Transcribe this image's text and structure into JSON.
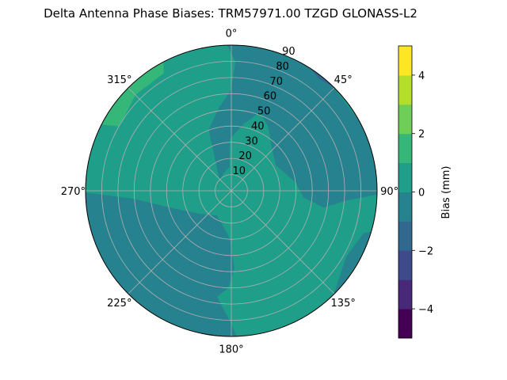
{
  "chart_data": {
    "type": "heatmap",
    "projection": "polar",
    "title": "Delta Antenna Phase Biases: TRM57971.00     TZGD GLONASS-L2",
    "azimuth_tick_labels": [
      "0°",
      "45°",
      "90°",
      "135°",
      "180°",
      "225°",
      "270°",
      "315°"
    ],
    "azimuth_ticks_deg": [
      0,
      45,
      90,
      135,
      180,
      225,
      270,
      315
    ],
    "radial_tick_labels": [
      "10",
      "20",
      "30",
      "40",
      "50",
      "60",
      "70",
      "80",
      "90"
    ],
    "radial_ticks": [
      10,
      20,
      30,
      40,
      50,
      60,
      70,
      80,
      90
    ],
    "radial_range": [
      0,
      90
    ],
    "direction": "clockwise",
    "zero_location": "north",
    "grid": true,
    "colorbar": {
      "label": "Bias (mm)",
      "range": [
        -5,
        5
      ],
      "levels": [
        -5,
        -4,
        -3,
        -2,
        -1,
        0,
        1,
        2,
        3,
        4,
        5
      ],
      "tick_labels": [
        "−4",
        "−2",
        "0",
        "2",
        "4"
      ],
      "ticks": [
        -4,
        -2,
        0,
        2,
        4
      ],
      "colors": [
        "#440154",
        "#482878",
        "#3e4a89",
        "#31688e",
        "#26828e",
        "#1f9e89",
        "#35b779",
        "#6ece58",
        "#b5de2b",
        "#fde725"
      ]
    },
    "regions": [
      {
        "name": "background",
        "bias_level": [
          0,
          1
        ],
        "color": "#1f9e89"
      },
      {
        "name": "north-east-negative-band",
        "bias_level": [
          -1,
          0
        ],
        "color": "#26828e"
      },
      {
        "name": "north-east-edge",
        "bias_level": [
          -2,
          -1
        ],
        "color": "#31688e"
      },
      {
        "name": "north-west-edge",
        "bias_level": [
          1,
          2
        ],
        "color": "#35b779"
      },
      {
        "name": "south-west-negative",
        "bias_level": [
          -1,
          0
        ],
        "color": "#26828e"
      },
      {
        "name": "south-east-negative-edge",
        "bias_level": [
          -1,
          0
        ],
        "color": "#26828e"
      }
    ]
  }
}
